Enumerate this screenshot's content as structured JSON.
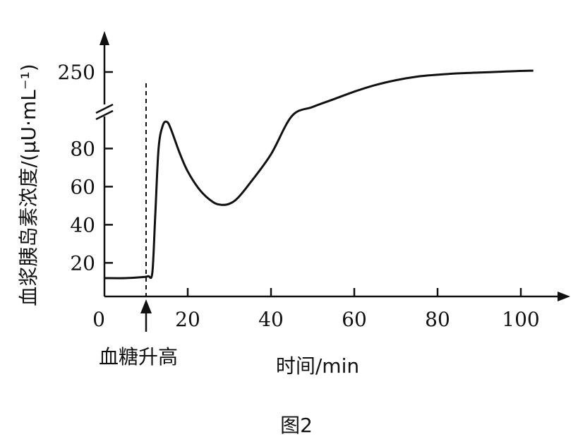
{
  "chart_data": {
    "type": "line",
    "title": "",
    "caption": "图2",
    "xlabel": "时间/min",
    "ylabel": "血浆胰岛素浓度/(μU·mL⁻¹)",
    "xlim": [
      0,
      105
    ],
    "x_ticks": [
      {
        "value": 0,
        "label": "0"
      },
      {
        "value": 20,
        "label": "20"
      },
      {
        "value": 40,
        "label": "40"
      },
      {
        "value": 60,
        "label": "60"
      },
      {
        "value": 80,
        "label": "80"
      },
      {
        "value": 100,
        "label": "100"
      }
    ],
    "y_ticks": [
      {
        "value": 20,
        "label": "20"
      },
      {
        "value": 40,
        "label": "40"
      },
      {
        "value": 60,
        "label": "60"
      },
      {
        "value": 80,
        "label": "80"
      },
      {
        "value": 250,
        "label": "250"
      }
    ],
    "y_axis_break": true,
    "annotation": {
      "x": 10,
      "text": "血糖升高"
    },
    "grid": false,
    "legend": "none",
    "series": [
      {
        "x": [
          0,
          5,
          9,
          10.5,
          11.5,
          12.2,
          13,
          14,
          15,
          16,
          18,
          20,
          23,
          26,
          28,
          30,
          32,
          35,
          40,
          45,
          50,
          55,
          60,
          65,
          70,
          75,
          80,
          85,
          90,
          95,
          100,
          103
        ],
        "y": [
          12,
          12,
          12.5,
          13,
          15,
          45,
          80,
          92,
          94,
          90,
          78,
          68,
          58,
          52,
          50.5,
          51,
          54,
          62,
          77,
          97,
          122,
          150,
          178,
          202,
          220,
          233,
          240,
          245,
          248,
          251,
          254,
          255
        ],
        "color": "#111111"
      }
    ]
  }
}
